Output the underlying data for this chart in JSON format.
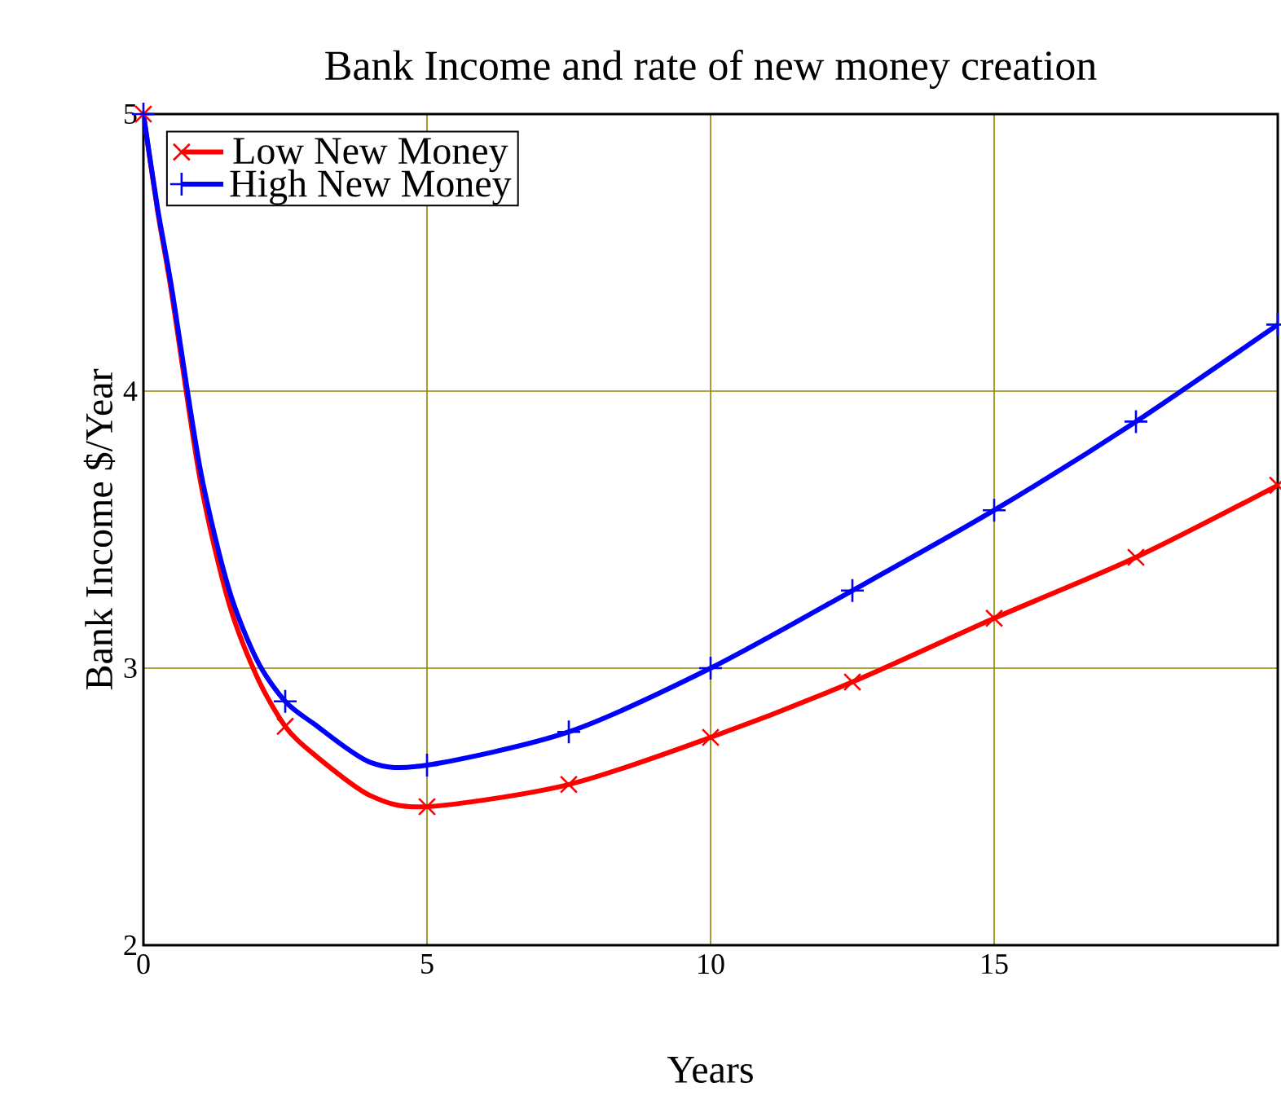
{
  "chart_data": {
    "type": "line",
    "title": "Bank Income and rate of new money creation",
    "xlabel": "Years",
    "ylabel": "Bank Income $/Year",
    "xlim": [
      0,
      20
    ],
    "ylim": [
      2,
      5
    ],
    "xticks": [
      0,
      5,
      10,
      15
    ],
    "yticks": [
      2,
      3,
      4,
      5
    ],
    "grid": true,
    "legend": "top left",
    "series": [
      {
        "name": "Low New Money",
        "color": "#ff0000",
        "marker": "cross",
        "x": [
          0,
          0.25,
          0.5,
          1,
          1.5,
          2,
          2.5,
          3,
          4,
          5,
          7.5,
          10,
          12.5,
          15,
          17.5,
          20
        ],
        "values": [
          5.0,
          4.65,
          4.35,
          3.68,
          3.24,
          2.97,
          2.79,
          2.69,
          2.54,
          2.5,
          2.58,
          2.75,
          2.95,
          3.18,
          3.4,
          3.66
        ]
      },
      {
        "name": "High New Money",
        "color": "#0000ff",
        "marker": "plus",
        "x": [
          0,
          0.25,
          0.5,
          1,
          1.5,
          2,
          2.5,
          3,
          4,
          5,
          7.5,
          10,
          12.5,
          15,
          17.5,
          20
        ],
        "values": [
          5.0,
          4.66,
          4.37,
          3.72,
          3.29,
          3.03,
          2.88,
          2.8,
          2.66,
          2.65,
          2.77,
          3.0,
          3.28,
          3.57,
          3.89,
          4.24
        ]
      }
    ]
  }
}
